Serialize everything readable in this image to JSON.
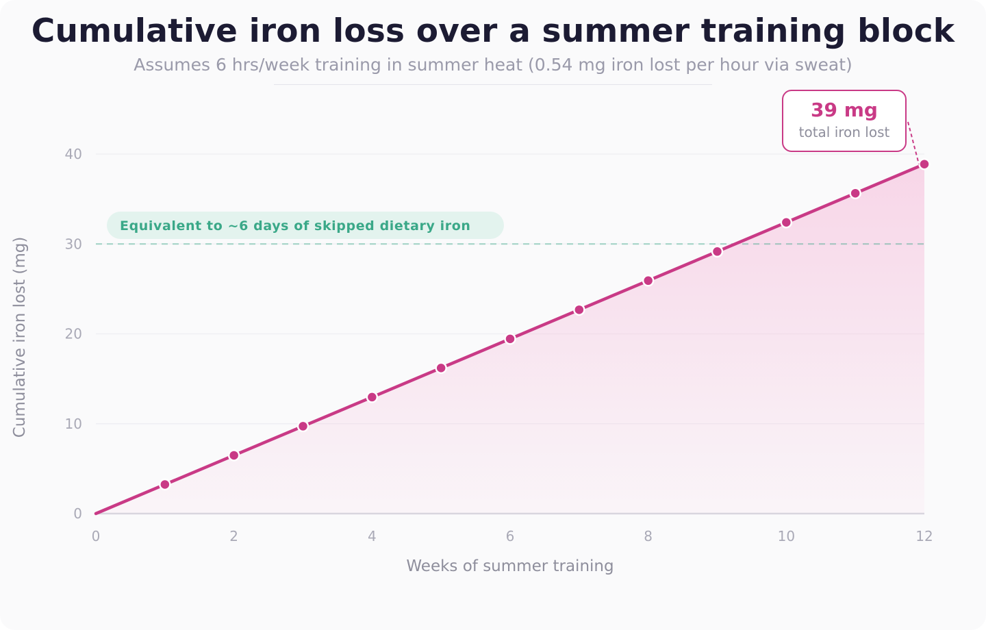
{
  "header": {
    "title": "Cumulative iron loss over a summer training block",
    "subtitle": "Assumes 6 hrs/week training in summer heat (0.54 mg iron lost per hour via sweat)"
  },
  "callout": {
    "value": "39 mg",
    "label": "total iron lost"
  },
  "reference_line": {
    "y": 30,
    "label": "Equivalent to ~6 days of skipped dietary iron"
  },
  "colors": {
    "series": "#c93a86",
    "reference": "#3aa888",
    "title": "#1c1b33"
  },
  "chart_data": {
    "type": "area",
    "title": "Cumulative iron loss over a summer training block",
    "subtitle": "Assumes 6 hrs/week training in summer heat (0.54 mg iron lost per hour via sweat)",
    "xlabel": "Weeks of summer training",
    "ylabel": "Cumulative iron lost (mg)",
    "xlim": [
      0,
      12
    ],
    "ylim": [
      0,
      40
    ],
    "xticks": [
      0,
      2,
      4,
      6,
      8,
      10,
      12
    ],
    "yticks": [
      0,
      10,
      20,
      30,
      40
    ],
    "grid": true,
    "x": [
      0,
      1,
      2,
      3,
      4,
      5,
      6,
      7,
      8,
      9,
      10,
      11,
      12
    ],
    "series": [
      {
        "values": [
          0,
          3.24,
          6.48,
          9.72,
          12.96,
          16.2,
          19.44,
          22.68,
          25.92,
          29.16,
          32.4,
          35.64,
          38.88
        ]
      }
    ]
  }
}
